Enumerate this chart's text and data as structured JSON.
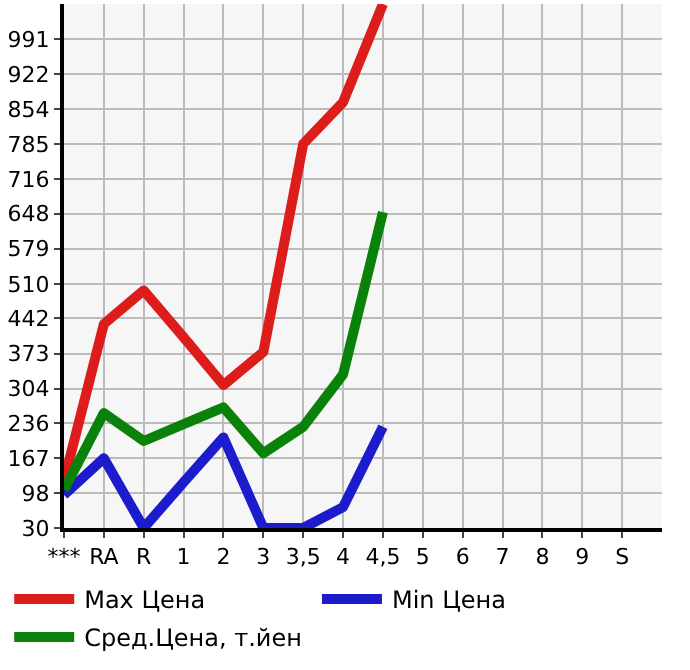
{
  "chart_data": {
    "type": "line",
    "categories": [
      "***",
      "RA",
      "R",
      "1",
      "2",
      "3",
      "3,5",
      "4",
      "4,5",
      "5",
      "6",
      "7",
      "8",
      "9",
      "S"
    ],
    "series": [
      {
        "name": "Max Цена",
        "color": "#dd1c1c",
        "values": [
          123,
          431,
          497,
          405,
          311,
          376,
          785,
          867,
          1060,
          null,
          null,
          null,
          null,
          null,
          null
        ]
      },
      {
        "name": "Min Цена",
        "color": "#1c1ccc",
        "values": [
          95,
          167,
          30,
          120,
          208,
          30,
          30,
          71,
          229,
          null,
          null,
          null,
          null,
          null,
          null
        ]
      },
      {
        "name": "Сред.Цена, т.йен",
        "color": "#0a820a",
        "values": [
          105,
          256,
          201,
          234,
          267,
          177,
          229,
          332,
          651,
          null,
          null,
          null,
          null,
          null,
          null
        ]
      }
    ],
    "ylim": [
      30,
      1060
    ],
    "yticks": [
      30,
      98,
      167,
      236,
      304,
      373,
      442,
      510,
      579,
      648,
      716,
      785,
      854,
      922,
      991
    ],
    "grid": true,
    "legend": "bottom",
    "marker": "none",
    "line_style": "solid"
  }
}
